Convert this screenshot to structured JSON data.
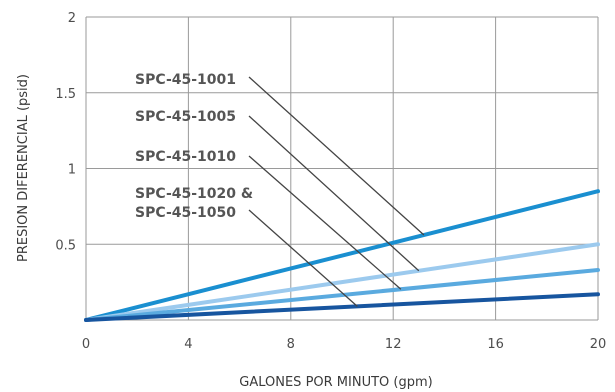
{
  "chart_data": {
    "type": "line",
    "xlabel": "GALONES POR MINUTO (gpm)",
    "ylabel": "PRESION DIFERENCIAL (psid)",
    "xlim": [
      0,
      20
    ],
    "ylim": [
      0,
      2
    ],
    "x_ticks": [
      "0",
      "4",
      "8",
      "12",
      "16",
      "20"
    ],
    "y_ticks": [
      "0.5",
      "1",
      "1.5",
      "2"
    ],
    "grid": true,
    "series": [
      {
        "name": "SPC-45-1001",
        "x": [
          0,
          20
        ],
        "y": [
          0,
          0.85
        ],
        "color": "#1a8fd0"
      },
      {
        "name": "SPC-45-1005",
        "x": [
          0,
          20
        ],
        "y": [
          0,
          0.5
        ],
        "color": "#9ccaee"
      },
      {
        "name": "SPC-45-1010",
        "x": [
          0,
          20
        ],
        "y": [
          0,
          0.33
        ],
        "color": "#5aaadf"
      },
      {
        "name": "SPC-45-1020 & SPC-45-1050",
        "x": [
          0,
          20
        ],
        "y": [
          0,
          0.17
        ],
        "color": "#17559f"
      }
    ],
    "callouts": [
      {
        "lines": [
          "SPC-45-1001"
        ],
        "series": 0,
        "at_x": 13.2
      },
      {
        "lines": [
          "SPC-45-1005"
        ],
        "series": 1,
        "at_x": 13.0
      },
      {
        "lines": [
          "SPC-45-1010"
        ],
        "series": 2,
        "at_x": 12.3
      },
      {
        "lines": [
          "SPC-45-1020 &",
          "SPC-45-1050"
        ],
        "series": 3,
        "at_x": 10.6
      }
    ]
  }
}
